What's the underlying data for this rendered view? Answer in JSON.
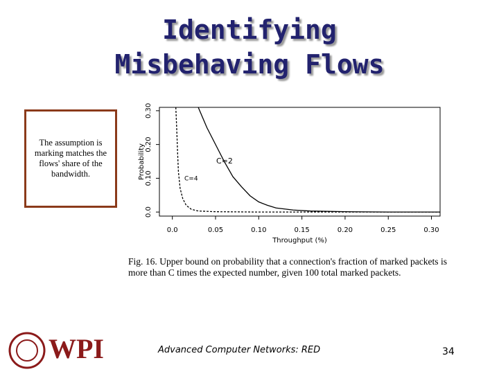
{
  "title": {
    "lines": [
      "Identifying",
      "Misbehaving Flows"
    ]
  },
  "note": "The assumption is marking matches the flows' share of the bandwidth.",
  "caption": "Fig. 16.   Upper bound on probability that a connection's fraction of marked packets is more than C times the expected number, given 100 total marked packets.",
  "footer": {
    "course": "Advanced Computer Networks:  RED",
    "page": "34",
    "logo": "WPI"
  },
  "chart_data": {
    "type": "line",
    "xlabel": "Throughput (%)",
    "ylabel": "Probability",
    "xlim": [
      -0.015,
      0.31
    ],
    "ylim": [
      -0.012,
      0.31
    ],
    "xticks": [
      {
        "value": 0,
        "label": "0.0"
      },
      0.05,
      {
        "value": 0.1,
        "label": "0.10"
      },
      0.15,
      {
        "value": 0.2,
        "label": "0.20"
      },
      0.25,
      {
        "value": 0.3,
        "label": "0.30"
      }
    ],
    "yticks": [
      {
        "value": 0,
        "label": "0.0"
      },
      {
        "value": 0.1,
        "label": "0.10"
      },
      {
        "value": 0.2,
        "label": "0.20"
      },
      {
        "value": 0.3,
        "label": "0.30"
      }
    ],
    "series": [
      {
        "name": "C=2",
        "color": "#000000",
        "style": "solid",
        "x": [
          0.03,
          0.035,
          0.04,
          0.05,
          0.06,
          0.07,
          0.08,
          0.09,
          0.1,
          0.11,
          0.12,
          0.14,
          0.16,
          0.2,
          0.25,
          0.31
        ],
        "values": [
          0.31,
          0.28,
          0.25,
          0.2,
          0.15,
          0.105,
          0.075,
          0.048,
          0.03,
          0.02,
          0.012,
          0.006,
          0.003,
          0.001,
          0,
          0
        ]
      },
      {
        "name": "C=4",
        "color": "#000000",
        "style": "dashed",
        "x": [
          0.004,
          0.005,
          0.006,
          0.007,
          0.009,
          0.012,
          0.016,
          0.022,
          0.03,
          0.05,
          0.1,
          0.31
        ],
        "values": [
          0.31,
          0.25,
          0.18,
          0.12,
          0.07,
          0.04,
          0.02,
          0.008,
          0.003,
          0.001,
          0,
          0
        ]
      }
    ]
  }
}
